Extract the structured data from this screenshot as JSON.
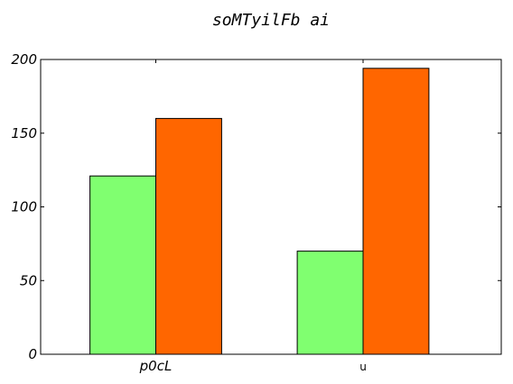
{
  "chart_data": {
    "type": "bar",
    "title": "soMTyilFb  ai",
    "xlabel": "",
    "ylabel": "",
    "categories": [
      "p0cL",
      "u"
    ],
    "series": [
      {
        "values": [
          121,
          70
        ],
        "color": "#80ff70"
      },
      {
        "values": [
          160,
          194
        ],
        "color": "#ff6600"
      }
    ],
    "ylim": [
      0,
      200
    ],
    "yticks": [
      0,
      50,
      100,
      150,
      200
    ],
    "grid": false,
    "legend": "none"
  }
}
